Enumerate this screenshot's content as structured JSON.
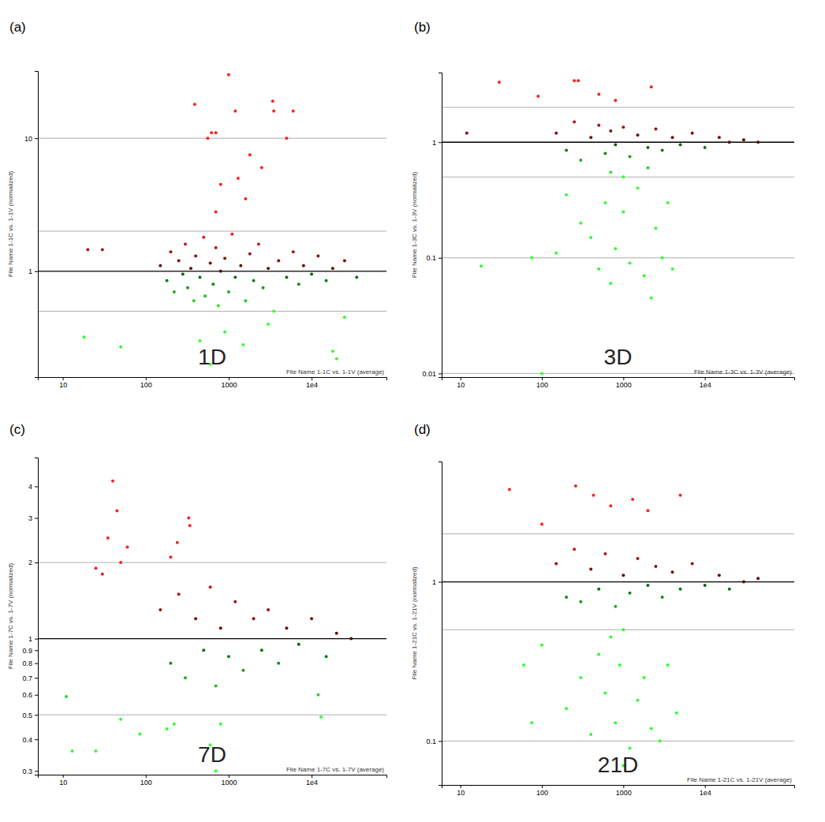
{
  "chart_data": [
    {
      "type": "scatter",
      "title": "(a)",
      "annotation": "1D",
      "log": true,
      "y_label": "File Name 1-1C vs. 1-1V (normalized)",
      "x_label": "File Name 1-1C vs. 1-1V (average)",
      "xlim": [
        5,
        80000
      ],
      "xticks": [
        10,
        100,
        1000,
        {
          "value": 10000,
          "label": "1e4"
        }
      ],
      "ylim": [
        0.16,
        32
      ],
      "yticks": [
        1,
        10
      ],
      "ref_lines": [
        0.5,
        1,
        2,
        10
      ],
      "x": [
        150,
        180,
        200,
        220,
        250,
        280,
        300,
        320,
        350,
        380,
        400,
        450,
        500,
        520,
        600,
        650,
        700,
        750,
        800,
        900,
        1000,
        1100,
        1200,
        1400,
        1600,
        1800,
        2000,
        2300,
        2600,
        3000,
        3500,
        4000,
        5000,
        6000,
        7000,
        8000,
        10000,
        12000,
        15000,
        18000,
        25000,
        35000,
        20,
        30,
        390,
        560,
        620,
        700,
        1000,
        1200,
        3400,
        3500,
        5000,
        6000,
        1800,
        2500,
        800,
        1300,
        700,
        1600,
        18,
        50,
        600,
        450,
        900,
        1500,
        3000,
        18000,
        20000,
        25000
      ],
      "values": [
        1.1,
        0.85,
        1.4,
        0.7,
        1.2,
        0.95,
        1.6,
        0.75,
        1.05,
        0.6,
        1.3,
        0.9,
        1.8,
        0.65,
        1.15,
        0.8,
        1.5,
        0.55,
        1.0,
        1.25,
        0.7,
        1.9,
        0.9,
        1.1,
        0.6,
        1.35,
        0.85,
        1.6,
        0.75,
        1.05,
        0.5,
        1.2,
        0.9,
        1.4,
        0.8,
        1.1,
        0.95,
        1.3,
        0.85,
        1.05,
        1.2,
        0.9,
        1.45,
        1.45,
        18,
        10,
        11,
        11,
        30,
        16,
        19,
        16,
        10,
        16,
        7.5,
        6,
        4.5,
        5,
        2.8,
        3.5,
        0.32,
        0.27,
        0.2,
        0.3,
        0.35,
        0.28,
        0.4,
        0.25,
        0.22,
        0.45
      ]
    },
    {
      "type": "scatter",
      "title": "(b)",
      "annotation": "3D",
      "log": true,
      "y_label": "File Name 1-3C vs. 1-3V (normalized)",
      "x_label": "File Name 1-3C vs. 1-3V (average)",
      "xlim": [
        5.9,
        125000
      ],
      "xticks": [
        10,
        100,
        1000,
        {
          "value": 10000,
          "label": "1e4"
        }
      ],
      "ylim": [
        0.0093,
        4
      ],
      "yticks": [
        0.01,
        0.1,
        1
      ],
      "ref_lines": [
        0.01,
        0.1,
        0.5,
        1,
        2
      ],
      "x": [
        150,
        200,
        250,
        300,
        400,
        500,
        600,
        700,
        800,
        1000,
        1200,
        1500,
        2000,
        2500,
        3000,
        4000,
        5000,
        7000,
        10000,
        15000,
        20000,
        30000,
        45000,
        30,
        90,
        250,
        280,
        500,
        800,
        2200,
        12,
        18,
        100,
        75,
        150,
        200,
        300,
        400,
        500,
        600,
        700,
        800,
        1000,
        1200,
        1500,
        1800,
        2200,
        2500,
        3000,
        3500,
        4000,
        1000,
        700,
        2000
      ],
      "values": [
        1.2,
        0.85,
        1.5,
        0.7,
        1.1,
        1.4,
        0.8,
        1.25,
        0.95,
        1.35,
        0.75,
        1.15,
        0.9,
        1.3,
        0.85,
        1.1,
        0.95,
        1.2,
        0.9,
        1.1,
        1.0,
        1.05,
        1.0,
        3.3,
        2.5,
        3.4,
        3.4,
        2.6,
        2.3,
        3.0,
        1.2,
        0.085,
        0.01,
        0.1,
        0.11,
        0.35,
        0.2,
        0.15,
        0.08,
        0.3,
        0.06,
        0.12,
        0.25,
        0.09,
        0.4,
        0.07,
        0.045,
        0.18,
        0.1,
        0.3,
        0.08,
        0.5,
        0.55,
        0.6
      ]
    },
    {
      "type": "scatter",
      "title": "(c)",
      "annotation": "7D",
      "log": true,
      "y_label": "File Name 1-7C vs. 1-7V (normalized)",
      "x_label": "File Name 1-7C vs. 1-7V (average)",
      "xlim": [
        5,
        80000
      ],
      "xticks": [
        10,
        100,
        1000,
        {
          "value": 10000,
          "label": "1e4"
        }
      ],
      "ylim": [
        0.29,
        5.2
      ],
      "yticks": [
        0.3,
        0.4,
        0.5,
        0.6,
        0.7,
        0.8,
        0.9,
        1,
        2,
        3,
        4
      ],
      "ref_lines": [
        0.5,
        1,
        2
      ],
      "x": [
        150,
        200,
        250,
        300,
        400,
        500,
        600,
        700,
        800,
        1000,
        1200,
        1500,
        2000,
        2500,
        3000,
        4000,
        5000,
        7000,
        10000,
        15000,
        20000,
        30000,
        40,
        45,
        35,
        50,
        60,
        330,
        340,
        240,
        200,
        25,
        30,
        11,
        13,
        25,
        50,
        85,
        180,
        220,
        600,
        800,
        700,
        12000,
        13000
      ],
      "values": [
        1.3,
        0.8,
        1.5,
        0.7,
        1.2,
        0.9,
        1.6,
        0.65,
        1.1,
        0.85,
        1.4,
        0.75,
        1.2,
        0.9,
        1.3,
        0.8,
        1.1,
        0.95,
        1.2,
        0.85,
        1.05,
        1.0,
        4.2,
        3.2,
        2.5,
        2.0,
        2.3,
        3.0,
        2.8,
        2.4,
        2.1,
        1.9,
        1.8,
        0.59,
        0.36,
        0.36,
        0.48,
        0.42,
        0.44,
        0.46,
        0.38,
        0.46,
        0.3,
        0.6,
        0.49
      ]
    },
    {
      "type": "scatter",
      "title": "(d)",
      "annotation": "21D",
      "log": true,
      "y_label": "File Name 1-21C vs. 1-21V (normalized)",
      "x_label": "File Name 1-21C vs. 1-21V (average)",
      "xlim": [
        5.9,
        125000
      ],
      "xticks": [
        10,
        100,
        1000,
        {
          "value": 10000,
          "label": "1e4"
        }
      ],
      "ylim": [
        0.053,
        5.7
      ],
      "yticks": [
        0.1,
        1
      ],
      "ref_lines": [
        0.1,
        0.5,
        1,
        2
      ],
      "x": [
        150,
        200,
        250,
        300,
        400,
        500,
        600,
        800,
        1000,
        1200,
        1500,
        2000,
        2500,
        3000,
        4000,
        5000,
        7000,
        10000,
        15000,
        20000,
        30000,
        45000,
        40,
        260,
        430,
        1300,
        5000,
        2000,
        700,
        100,
        60,
        75,
        100,
        200,
        300,
        400,
        500,
        600,
        800,
        900,
        1000,
        1200,
        1500,
        1800,
        2200,
        2800,
        3500,
        4500,
        1000,
        700
      ],
      "values": [
        1.3,
        0.8,
        1.6,
        0.75,
        1.2,
        0.9,
        1.5,
        0.7,
        1.1,
        0.85,
        1.4,
        0.95,
        1.25,
        0.8,
        1.15,
        0.9,
        1.3,
        0.95,
        1.1,
        0.9,
        1.0,
        1.05,
        3.8,
        4.0,
        3.5,
        3.3,
        3.5,
        2.8,
        3.0,
        2.3,
        0.3,
        0.13,
        0.4,
        0.16,
        0.25,
        0.11,
        0.35,
        0.2,
        0.13,
        0.3,
        0.07,
        0.09,
        0.18,
        0.25,
        0.12,
        0.1,
        0.3,
        0.15,
        0.5,
        0.45
      ]
    }
  ]
}
